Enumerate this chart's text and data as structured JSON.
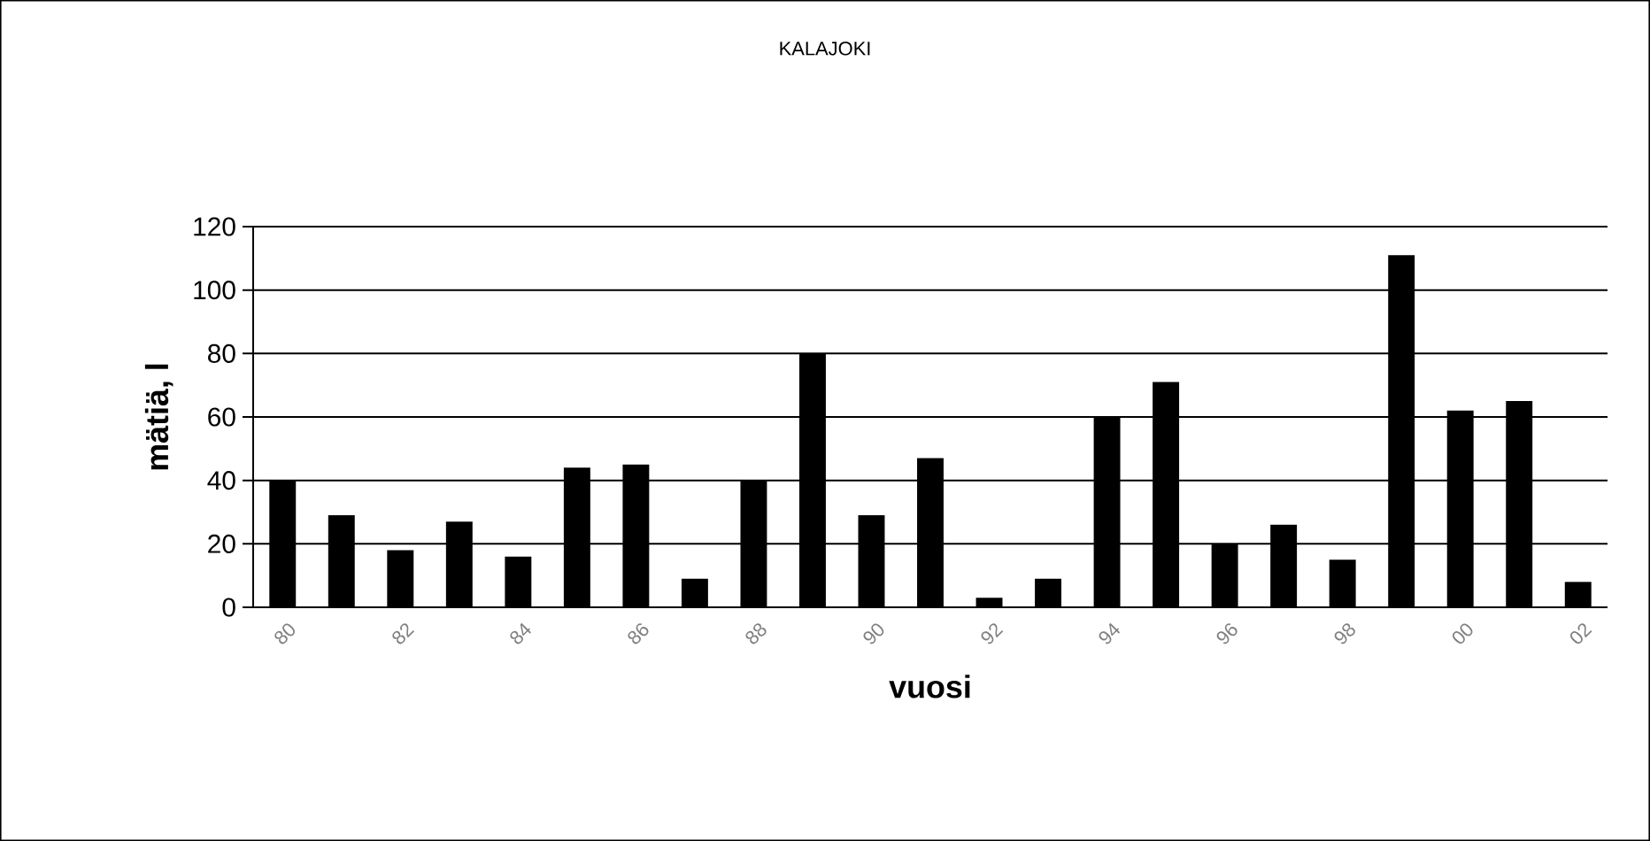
{
  "chart_data": {
    "type": "bar",
    "title": "KALAJOKI",
    "xlabel": "vuosi",
    "ylabel": "mätiä, l",
    "categories": [
      "80",
      null,
      "82",
      null,
      "84",
      null,
      "86",
      null,
      "88",
      null,
      "90",
      null,
      "92",
      null,
      "94",
      null,
      "96",
      null,
      "98",
      null,
      "00",
      null,
      "02"
    ],
    "values": [
      40,
      29,
      18,
      27,
      16,
      44,
      45,
      9,
      40,
      80,
      29,
      47,
      3,
      9,
      60,
      71,
      20,
      26,
      15,
      111,
      62,
      65,
      8
    ],
    "color": "#000000",
    "ylim": [
      0,
      120
    ],
    "yticks": [
      0,
      20,
      40,
      60,
      80,
      100,
      120
    ],
    "grid": "y"
  }
}
